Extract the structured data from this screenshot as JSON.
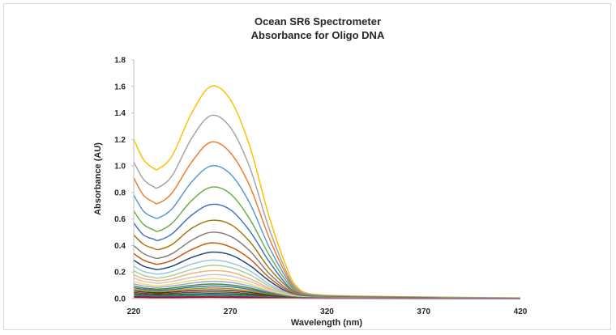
{
  "chart_data": {
    "type": "line",
    "title": "Ocean SR6 Spectrometer",
    "subtitle": "Absorbance for Oligo DNA",
    "xlabel": "Wavelength (nm)",
    "ylabel": "Absorbance (AU)",
    "xlim": [
      220,
      420
    ],
    "ylim": [
      0,
      1.8
    ],
    "x_ticks": [
      "220",
      "270",
      "320",
      "370",
      "420"
    ],
    "y_ticks": [
      "0.0",
      "0.2",
      "0.4",
      "0.6",
      "0.8",
      "1.0",
      "1.2",
      "1.4",
      "1.6",
      "1.8"
    ],
    "grid": false,
    "legend": "none",
    "x": [
      220,
      225,
      230,
      233,
      240,
      250,
      260,
      270,
      280,
      290,
      300,
      305,
      310,
      320,
      340,
      370,
      400,
      420
    ],
    "shape_note_removed": true,
    "series": [
      {
        "color": "#FFC000",
        "peak": 1.6,
        "values": [
          1.2,
          1.05,
          0.985,
          0.98,
          1.08,
          1.4,
          1.6,
          1.5,
          1.15,
          0.62,
          0.2,
          0.08,
          0.04,
          0.025,
          0.018,
          0.012,
          0.008,
          0.005
        ]
      },
      {
        "color": "#A5A5A5",
        "peak": 1.38,
        "values": [
          1.03,
          0.9,
          0.845,
          0.84,
          0.93,
          1.21,
          1.38,
          1.29,
          0.99,
          0.53,
          0.17,
          0.07,
          0.035,
          0.022,
          0.016,
          0.011,
          0.007,
          0.005
        ]
      },
      {
        "color": "#ED7D31",
        "peak": 1.18,
        "values": [
          0.91,
          0.78,
          0.73,
          0.72,
          0.8,
          1.03,
          1.18,
          1.1,
          0.85,
          0.46,
          0.15,
          0.06,
          0.03,
          0.02,
          0.014,
          0.01,
          0.006,
          0.004
        ]
      },
      {
        "color": "#5B9BD5",
        "peak": 1.0,
        "values": [
          0.78,
          0.66,
          0.615,
          0.61,
          0.68,
          0.88,
          1.0,
          0.94,
          0.72,
          0.39,
          0.13,
          0.05,
          0.028,
          0.018,
          0.012,
          0.009,
          0.006,
          0.004
        ]
      },
      {
        "color": "#70AD47",
        "peak": 0.84,
        "values": [
          0.66,
          0.56,
          0.52,
          0.51,
          0.57,
          0.74,
          0.84,
          0.79,
          0.6,
          0.33,
          0.11,
          0.045,
          0.025,
          0.016,
          0.011,
          0.008,
          0.005,
          0.003
        ]
      },
      {
        "color": "#4472C4",
        "peak": 0.71,
        "values": [
          0.57,
          0.48,
          0.45,
          0.44,
          0.49,
          0.63,
          0.71,
          0.67,
          0.51,
          0.28,
          0.09,
          0.04,
          0.022,
          0.014,
          0.01,
          0.007,
          0.005,
          0.003
        ]
      },
      {
        "color": "#A47A0C",
        "peak": 0.59,
        "values": [
          0.48,
          0.41,
          0.38,
          0.37,
          0.41,
          0.53,
          0.59,
          0.56,
          0.43,
          0.23,
          0.08,
          0.035,
          0.02,
          0.013,
          0.009,
          0.006,
          0.004,
          0.003
        ]
      },
      {
        "color": "#7F7F7F",
        "peak": 0.5,
        "values": [
          0.4,
          0.34,
          0.31,
          0.305,
          0.34,
          0.44,
          0.5,
          0.47,
          0.36,
          0.19,
          0.065,
          0.03,
          0.018,
          0.012,
          0.008,
          0.006,
          0.004,
          0.002
        ]
      },
      {
        "color": "#C55A11",
        "peak": 0.42,
        "values": [
          0.34,
          0.29,
          0.265,
          0.26,
          0.29,
          0.37,
          0.42,
          0.39,
          0.3,
          0.16,
          0.055,
          0.025,
          0.016,
          0.011,
          0.008,
          0.005,
          0.004,
          0.002
        ]
      },
      {
        "color": "#264478",
        "peak": 0.35,
        "values": [
          0.29,
          0.245,
          0.225,
          0.22,
          0.245,
          0.31,
          0.35,
          0.33,
          0.25,
          0.135,
          0.045,
          0.022,
          0.014,
          0.01,
          0.007,
          0.005,
          0.003,
          0.002
        ]
      },
      {
        "color": "#9DC3E6",
        "peak": 0.29,
        "values": [
          0.245,
          0.205,
          0.19,
          0.185,
          0.205,
          0.26,
          0.29,
          0.27,
          0.21,
          0.11,
          0.04,
          0.02,
          0.012,
          0.009,
          0.006,
          0.004,
          0.003,
          0.002
        ]
      },
      {
        "color": "#A9D18E",
        "peak": 0.25,
        "values": [
          0.21,
          0.175,
          0.16,
          0.155,
          0.175,
          0.22,
          0.25,
          0.235,
          0.18,
          0.095,
          0.035,
          0.018,
          0.011,
          0.008,
          0.006,
          0.004,
          0.003,
          0.002
        ]
      },
      {
        "color": "#F4B183",
        "peak": 0.21,
        "values": [
          0.18,
          0.15,
          0.14,
          0.135,
          0.15,
          0.19,
          0.21,
          0.2,
          0.15,
          0.08,
          0.03,
          0.016,
          0.01,
          0.007,
          0.005,
          0.004,
          0.003,
          0.002
        ]
      },
      {
        "color": "#C9C9C9",
        "peak": 0.18,
        "values": [
          0.155,
          0.13,
          0.12,
          0.115,
          0.13,
          0.16,
          0.18,
          0.17,
          0.13,
          0.07,
          0.026,
          0.014,
          0.009,
          0.007,
          0.005,
          0.003,
          0.002,
          0.002
        ]
      },
      {
        "color": "#FFD966",
        "peak": 0.15,
        "values": [
          0.13,
          0.11,
          0.1,
          0.098,
          0.11,
          0.135,
          0.15,
          0.14,
          0.11,
          0.06,
          0.022,
          0.012,
          0.008,
          0.006,
          0.004,
          0.003,
          0.002,
          0.001
        ]
      },
      {
        "color": "#8FAADC",
        "peak": 0.13,
        "values": [
          0.112,
          0.095,
          0.087,
          0.085,
          0.095,
          0.117,
          0.13,
          0.122,
          0.095,
          0.052,
          0.019,
          0.011,
          0.007,
          0.005,
          0.004,
          0.003,
          0.002,
          0.001
        ]
      },
      {
        "color": "#548235",
        "peak": 0.11,
        "values": [
          0.095,
          0.08,
          0.074,
          0.072,
          0.08,
          0.099,
          0.11,
          0.103,
          0.08,
          0.044,
          0.016,
          0.009,
          0.006,
          0.005,
          0.003,
          0.002,
          0.002,
          0.001
        ]
      },
      {
        "color": "#2E75B6",
        "peak": 0.095,
        "values": [
          0.082,
          0.07,
          0.064,
          0.062,
          0.069,
          0.086,
          0.095,
          0.089,
          0.069,
          0.038,
          0.014,
          0.008,
          0.005,
          0.004,
          0.003,
          0.002,
          0.001,
          0.001
        ]
      },
      {
        "color": "#BF9000",
        "peak": 0.08,
        "values": [
          0.07,
          0.06,
          0.054,
          0.053,
          0.059,
          0.073,
          0.08,
          0.075,
          0.058,
          0.032,
          0.012,
          0.007,
          0.005,
          0.004,
          0.003,
          0.002,
          0.001,
          0.001
        ]
      },
      {
        "color": "#3B3838",
        "peak": 0.065,
        "values": [
          0.058,
          0.05,
          0.045,
          0.044,
          0.049,
          0.06,
          0.065,
          0.061,
          0.047,
          0.026,
          0.01,
          0.006,
          0.004,
          0.003,
          0.002,
          0.002,
          0.001,
          0.001
        ]
      },
      {
        "color": "#843C0C",
        "peak": 0.05,
        "values": [
          0.046,
          0.04,
          0.036,
          0.035,
          0.039,
          0.047,
          0.05,
          0.047,
          0.036,
          0.02,
          0.008,
          0.005,
          0.003,
          0.003,
          0.002,
          0.001,
          0.001,
          0.001
        ]
      },
      {
        "color": "#1F4E79",
        "peak": 0.038,
        "values": [
          0.035,
          0.03,
          0.027,
          0.026,
          0.029,
          0.035,
          0.038,
          0.036,
          0.028,
          0.016,
          0.007,
          0.004,
          0.003,
          0.002,
          0.002,
          0.001,
          0.001,
          0.0
        ]
      },
      {
        "color": "#00B050",
        "peak": 0.028,
        "values": [
          0.026,
          0.022,
          0.02,
          0.019,
          0.021,
          0.026,
          0.028,
          0.026,
          0.02,
          0.012,
          0.005,
          0.003,
          0.002,
          0.002,
          0.001,
          0.001,
          0.001,
          0.0
        ]
      },
      {
        "color": "#7030A0",
        "peak": 0.018,
        "values": [
          0.017,
          0.015,
          0.013,
          0.013,
          0.014,
          0.017,
          0.018,
          0.017,
          0.013,
          0.008,
          0.004,
          0.002,
          0.002,
          0.001,
          0.001,
          0.001,
          0.0,
          0.0
        ]
      },
      {
        "color": "#C00000",
        "peak": 0.01,
        "values": [
          0.01,
          0.009,
          0.008,
          0.008,
          0.008,
          0.009,
          0.01,
          0.009,
          0.008,
          0.005,
          0.003,
          0.002,
          0.001,
          0.001,
          0.001,
          0.0,
          0.0,
          0.0
        ]
      }
    ]
  }
}
